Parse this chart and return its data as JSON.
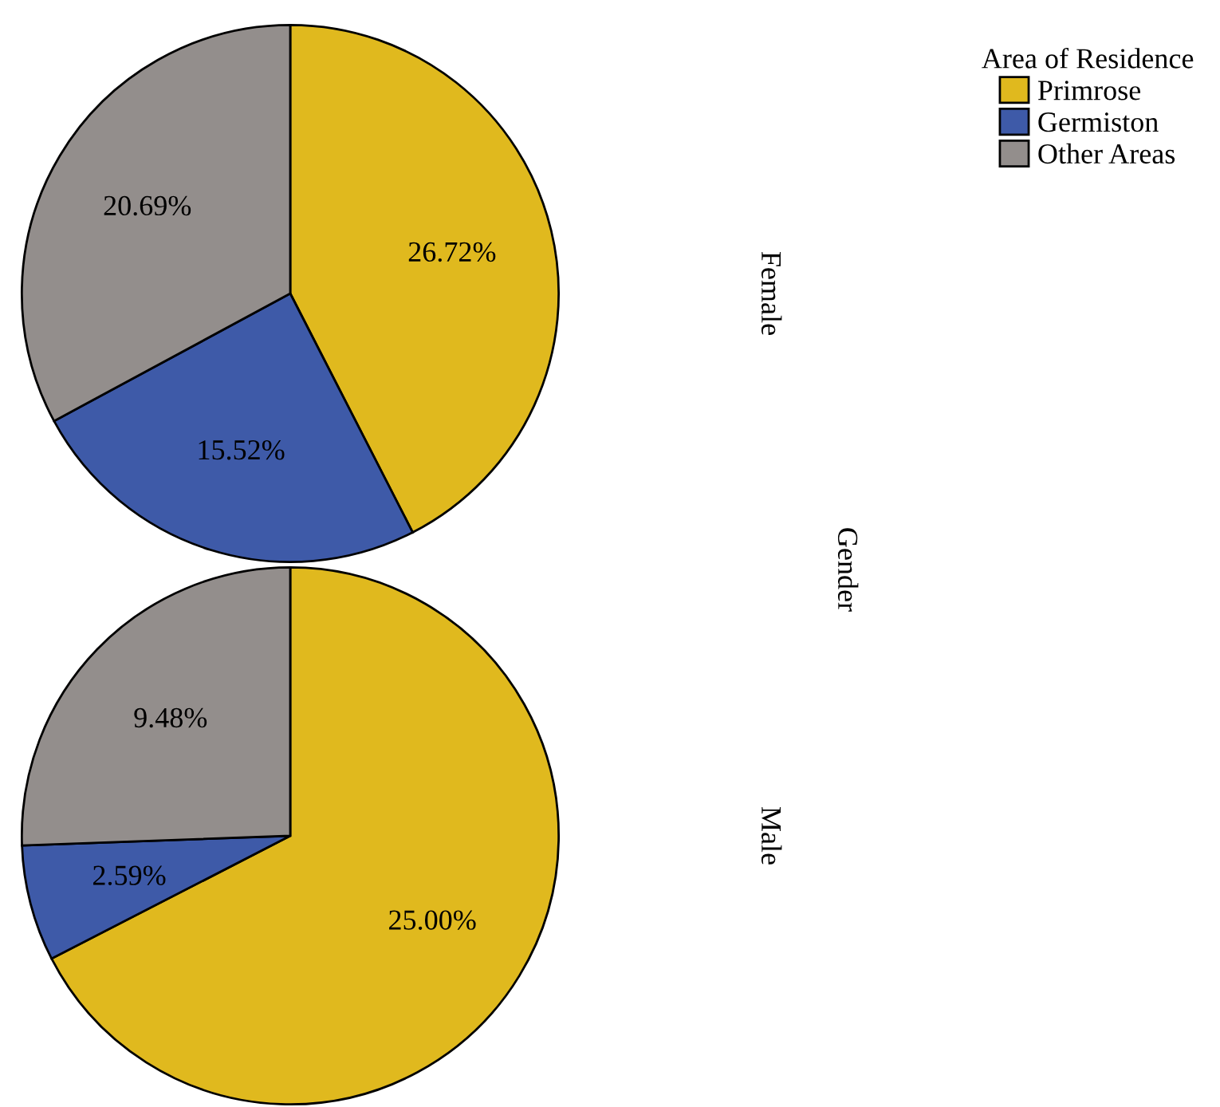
{
  "chart_data": [
    {
      "type": "pie",
      "title": "Female",
      "categories": [
        "Primrose",
        "Germiston",
        "Other Areas"
      ],
      "values": [
        26.72,
        15.52,
        20.69
      ],
      "value_labels": [
        "26.72%",
        "15.52%",
        "20.69%"
      ],
      "colors": [
        "#e0b91e",
        "#3e5aa8",
        "#938e8c"
      ],
      "legend": "top right",
      "legend_title": "Area of Residence",
      "annotations": [
        "Gender"
      ]
    },
    {
      "type": "pie",
      "title": "Male",
      "values": [
        25.0,
        2.59,
        9.48
      ],
      "value_labels": [
        "25.00%",
        "2.59%",
        "9.48%"
      ],
      "colors": [
        "#e0b91e",
        "#3e5aa8",
        "#938e8c"
      ]
    }
  ]
}
